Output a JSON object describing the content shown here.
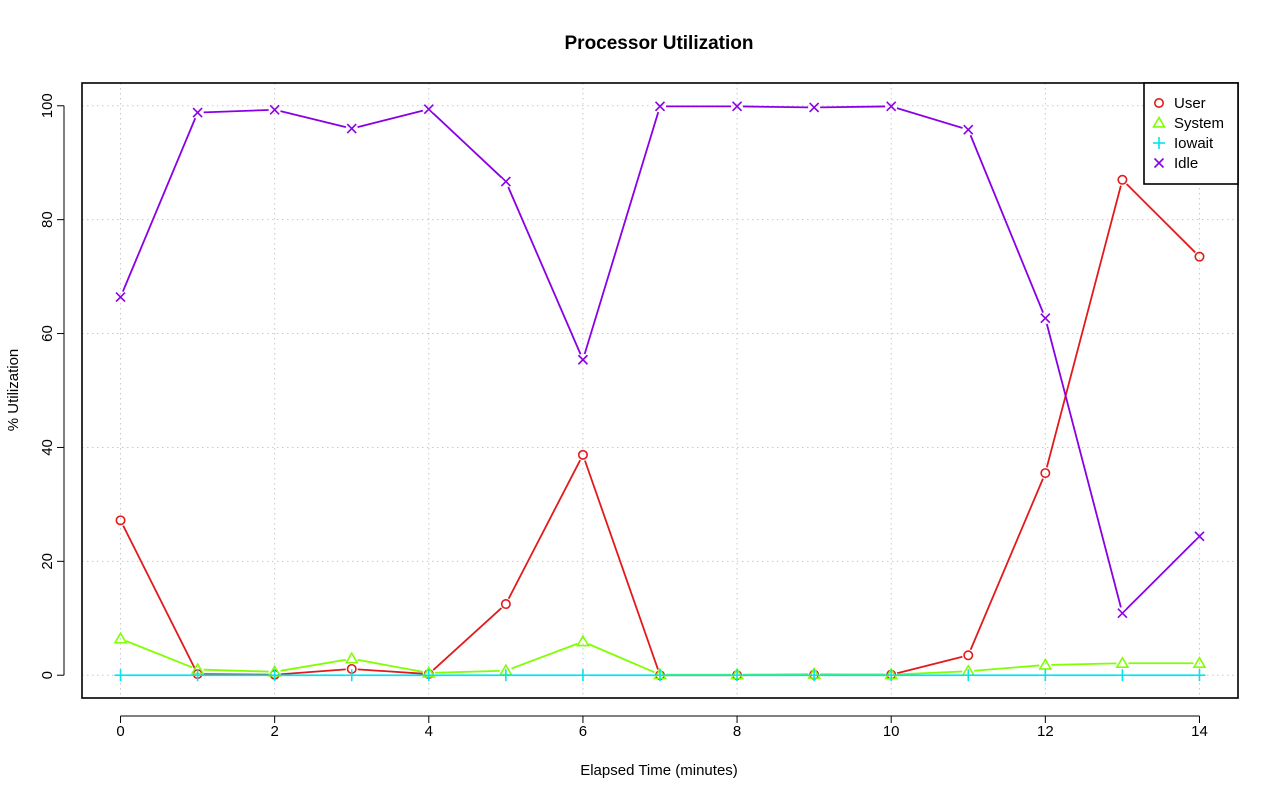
{
  "chart_data": {
    "type": "line",
    "title": "Processor Utilization",
    "xlabel": "Elapsed Time (minutes)",
    "ylabel": "% Utilization",
    "xlim": [
      -0.5,
      14.5
    ],
    "ylim": [
      -4,
      104
    ],
    "x_ticks": [
      0,
      2,
      4,
      6,
      8,
      10,
      12,
      14
    ],
    "y_ticks": [
      0,
      20,
      40,
      60,
      80,
      100
    ],
    "grid": true,
    "legend_position": "top-right",
    "x": [
      0,
      1,
      2,
      3,
      4,
      5,
      6,
      7,
      8,
      9,
      10,
      11,
      12,
      13,
      14
    ],
    "series": [
      {
        "name": "User",
        "color": "#e31a1c",
        "marker": "circle",
        "values": [
          27.2,
          0.2,
          0.1,
          1.1,
          0.2,
          12.5,
          38.7,
          0.0,
          0.0,
          0.1,
          0.1,
          3.5,
          35.5,
          87.0,
          73.5
        ]
      },
      {
        "name": "System",
        "color": "#7fff00",
        "marker": "triangle",
        "values": [
          6.4,
          1.0,
          0.6,
          2.9,
          0.4,
          0.8,
          5.9,
          0.1,
          0.1,
          0.2,
          0.1,
          0.7,
          1.8,
          2.1,
          2.1
        ]
      },
      {
        "name": "Iowait",
        "color": "#00e5ee",
        "marker": "plus",
        "values": [
          0,
          0,
          0,
          0,
          0,
          0,
          0,
          0,
          0,
          0,
          0,
          0,
          0,
          0,
          0
        ]
      },
      {
        "name": "Idle",
        "color": "#8a00e6",
        "marker": "x",
        "values": [
          66.4,
          98.8,
          99.3,
          96.0,
          99.4,
          86.7,
          55.4,
          99.9,
          99.9,
          99.7,
          99.9,
          95.8,
          62.7,
          10.9,
          24.4
        ]
      }
    ]
  }
}
